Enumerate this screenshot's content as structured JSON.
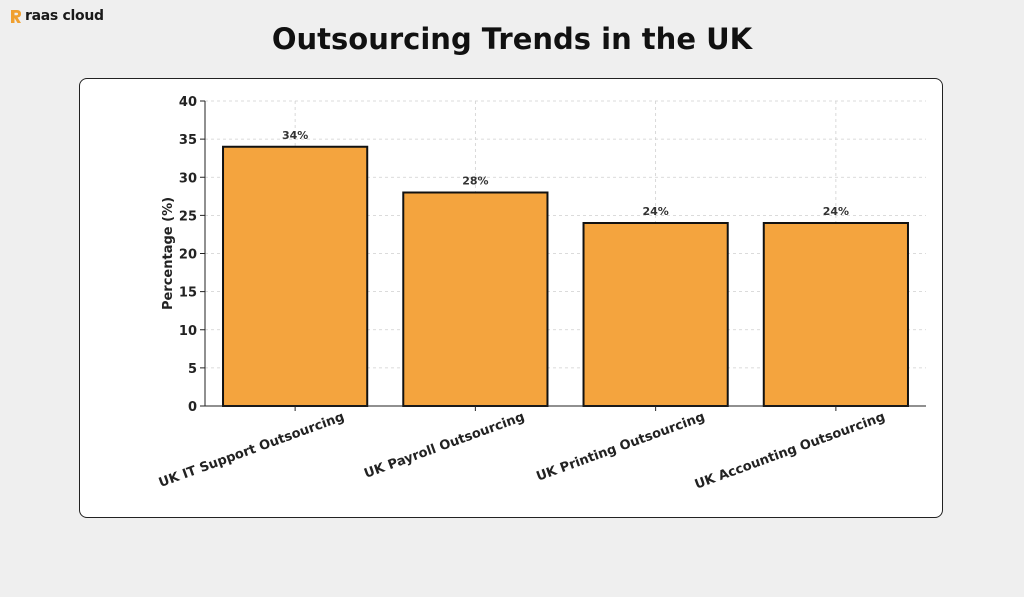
{
  "brand": {
    "name": "raas cloud",
    "accent": "#f0a030"
  },
  "chart_data": {
    "type": "bar",
    "title": "Outsourcing Trends in the UK",
    "xlabel": "",
    "ylabel": "Percentage (%)",
    "categories": [
      "UK IT Support Outsourcing",
      "UK Payroll Outsourcing",
      "UK Printing Outsourcing",
      "UK Accounting Outsourcing"
    ],
    "values": [
      34,
      28,
      24,
      24
    ],
    "data_labels": [
      "34%",
      "28%",
      "24%",
      "24%"
    ],
    "ylim": [
      0,
      40
    ],
    "yticks": [
      0,
      5,
      10,
      15,
      20,
      25,
      30,
      35,
      40
    ],
    "grid": true,
    "bar_color": "#f4a43e",
    "edge_color": "#111111"
  }
}
